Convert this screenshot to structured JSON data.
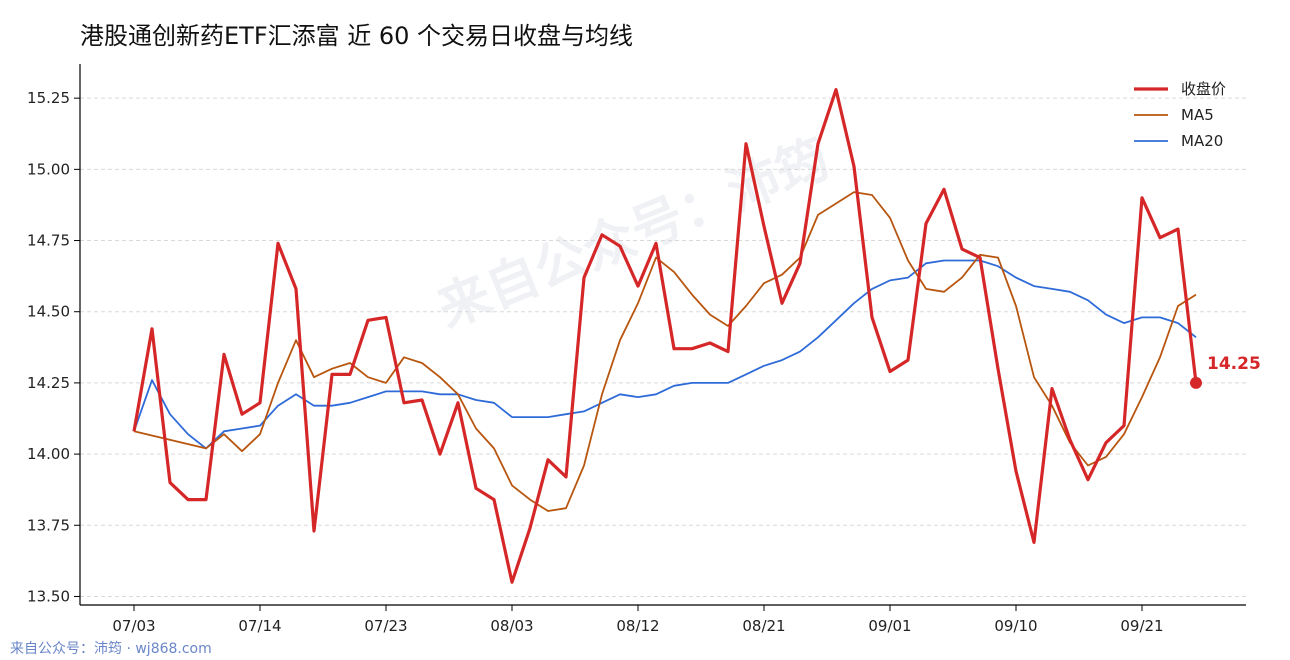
{
  "chart_data": {
    "type": "line",
    "title": "港股通创新药ETF汇添富 近 60 个交易日收盘与均线",
    "xlabel": "",
    "ylabel": "",
    "ylim": [
      13.47,
      15.37
    ],
    "yticks": [
      13.5,
      13.75,
      14.0,
      14.25,
      14.5,
      14.75,
      15.0,
      15.25
    ],
    "ytick_labels": [
      "13.50",
      "13.75",
      "14.00",
      "14.25",
      "14.50",
      "14.75",
      "15.00",
      "15.25"
    ],
    "xtick_labels": [
      {
        "index": 0,
        "label": "07/03"
      },
      {
        "index": 7,
        "label": "07/14"
      },
      {
        "index": 14,
        "label": "07/23"
      },
      {
        "index": 21,
        "label": "08/03"
      },
      {
        "index": 28,
        "label": "08/12"
      },
      {
        "index": 35,
        "label": "08/21"
      },
      {
        "index": 42,
        "label": "09/01"
      },
      {
        "index": 49,
        "label": "09/10"
      },
      {
        "index": 56,
        "label": "09/21"
      }
    ],
    "x_count": 60,
    "grid": "horizontal dashed",
    "legend_position": "top-right",
    "series": [
      {
        "name": "收盘价",
        "color": "#d62728",
        "values": [
          14.08,
          14.44,
          13.9,
          13.84,
          13.84,
          14.35,
          14.14,
          14.18,
          14.74,
          14.58,
          13.73,
          14.28,
          14.28,
          14.47,
          14.48,
          14.18,
          14.19,
          14.0,
          14.18,
          13.88,
          13.84,
          13.55,
          13.74,
          13.98,
          13.92,
          14.62,
          14.77,
          14.73,
          14.59,
          14.74,
          14.37,
          14.37,
          14.39,
          14.36,
          15.09,
          14.8,
          14.53,
          14.67,
          15.09,
          15.28,
          15.01,
          14.48,
          14.29,
          14.33,
          14.81,
          14.93,
          14.72,
          14.69,
          14.3,
          13.94,
          13.69,
          14.23,
          14.05,
          13.91,
          14.04,
          14.1,
          14.9,
          14.76,
          14.79,
          14.25
        ]
      },
      {
        "name": "MA5",
        "color": "#b8560f",
        "values": [
          14.08,
          null,
          null,
          null,
          14.02,
          14.07,
          14.01,
          14.07,
          14.25,
          14.4,
          14.27,
          14.3,
          14.32,
          14.27,
          14.25,
          14.34,
          14.32,
          14.27,
          14.21,
          14.09,
          14.02,
          13.89,
          13.84,
          13.8,
          13.81,
          13.96,
          14.21,
          14.4,
          14.53,
          14.69,
          14.64,
          14.56,
          14.49,
          14.45,
          14.52,
          14.6,
          14.63,
          14.69,
          14.84,
          14.88,
          14.92,
          14.91,
          14.83,
          14.68,
          14.58,
          14.57,
          14.62,
          14.7,
          14.69,
          14.52,
          14.27,
          14.17,
          14.04,
          13.96,
          13.99,
          14.07,
          14.2,
          14.34,
          14.52,
          14.56
        ]
      },
      {
        "name": "MA20",
        "color": "#2f6bd8",
        "values": [
          14.08,
          14.26,
          14.14,
          14.07,
          14.02,
          14.08,
          14.09,
          14.1,
          14.17,
          14.21,
          14.17,
          14.17,
          14.18,
          14.2,
          14.22,
          14.22,
          14.22,
          14.21,
          14.21,
          14.19,
          14.18,
          14.13,
          14.13,
          14.13,
          14.14,
          14.15,
          14.18,
          14.21,
          14.2,
          14.21,
          14.24,
          14.25,
          14.25,
          14.25,
          14.28,
          14.31,
          14.33,
          14.36,
          14.41,
          14.47,
          14.53,
          14.58,
          14.61,
          14.62,
          14.67,
          14.68,
          14.68,
          14.68,
          14.66,
          14.62,
          14.59,
          14.58,
          14.57,
          14.54,
          14.49,
          14.46,
          14.48,
          14.48,
          14.46,
          14.41
        ]
      }
    ],
    "last_close_label": "14.25"
  },
  "watermark": "来自公众号：沛筠",
  "footer": "来自公众号：沛筠 · wj868.com"
}
